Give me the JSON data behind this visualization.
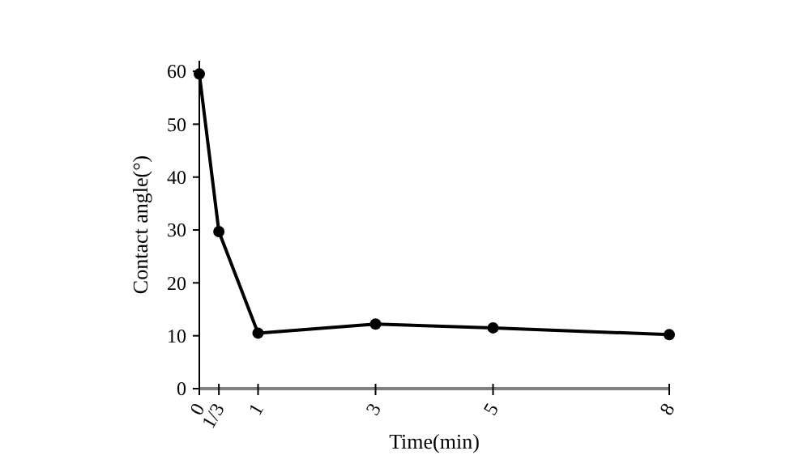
{
  "chart_data": {
    "type": "line",
    "xlabel": "Time(min)",
    "ylabel": "Contact angle(°)",
    "x": [
      0,
      0.333,
      1,
      3,
      5,
      8
    ],
    "series": [
      {
        "color": "#000000",
        "values": [
          59.5,
          29.7,
          10.5,
          12.2,
          11.5,
          10.2
        ]
      }
    ],
    "xlim": [
      0,
      8
    ],
    "xticks": [
      0,
      {
        "value": 0.333,
        "label": "1/3"
      },
      1,
      3,
      5,
      8
    ],
    "ylim": [
      0,
      62
    ],
    "yticks": [
      0,
      10,
      20,
      30,
      40,
      50,
      60
    ],
    "grid": false,
    "marker": "circle",
    "line_style": "solid"
  }
}
